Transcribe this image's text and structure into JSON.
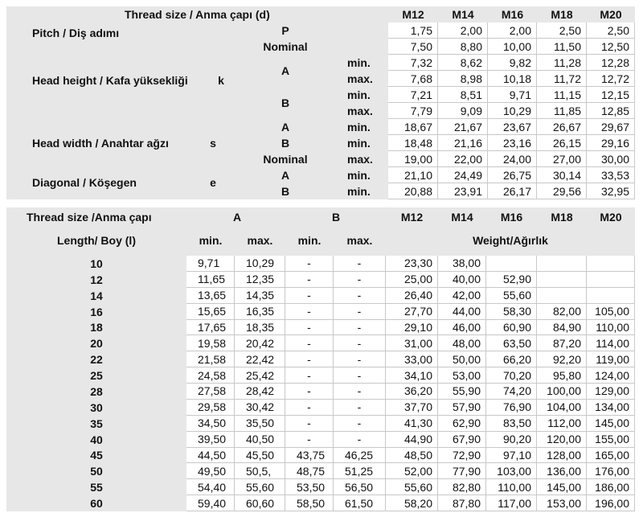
{
  "top": {
    "title": "Thread size / Anma çapı (d)",
    "sizes": [
      "M12",
      "M14",
      "M16",
      "M18",
      "M20"
    ],
    "groups": [
      {
        "name": "Pitch / Diş adımı"
      },
      {
        "name": "Head height / Kafa yüksekliği",
        "symbol": "k"
      },
      {
        "name": "Head width / Anahtar ağzı",
        "symbol": "s"
      },
      {
        "name": "Diagonal / Köşegen",
        "symbol": "e"
      }
    ],
    "spans": [
      "A",
      "B"
    ],
    "rows": [
      {
        "variant": "P",
        "values": [
          "1,75",
          "2,00",
          "2,00",
          "2,50",
          "2,50"
        ]
      },
      {
        "variant": "Nominal",
        "values": [
          "7,50",
          "8,80",
          "10,00",
          "11,50",
          "12,50"
        ]
      },
      {
        "limit": "min.",
        "values": [
          "7,32",
          "8,62",
          "9,82",
          "11,28",
          "12,28"
        ]
      },
      {
        "limit": "max.",
        "values": [
          "7,68",
          "8,98",
          "10,18",
          "11,72",
          "12,72"
        ]
      },
      {
        "limit": "min.",
        "values": [
          "7,21",
          "8,51",
          "9,71",
          "11,15",
          "12,15"
        ]
      },
      {
        "limit": "max.",
        "values": [
          "7,79",
          "9,09",
          "10,29",
          "11,85",
          "12,85"
        ]
      },
      {
        "variant": "A",
        "limit": "min.",
        "values": [
          "18,67",
          "21,67",
          "23,67",
          "26,67",
          "29,67"
        ]
      },
      {
        "variant": "B",
        "limit": "min.",
        "values": [
          "18,48",
          "21,16",
          "23,16",
          "26,15",
          "29,16"
        ]
      },
      {
        "variant": "Nominal",
        "limit": "max.",
        "values": [
          "19,00",
          "22,00",
          "24,00",
          "27,00",
          "30,00"
        ]
      },
      {
        "variant": "A",
        "limit": "min.",
        "values": [
          "21,10",
          "24,49",
          "26,75",
          "30,14",
          "33,53"
        ]
      },
      {
        "variant": "B",
        "limit": "min.",
        "values": [
          "20,88",
          "23,91",
          "26,17",
          "29,56",
          "32,95"
        ]
      }
    ]
  },
  "bottom": {
    "title": "Thread size /Anma çapı",
    "variants": [
      "A",
      "B"
    ],
    "sizes": [
      "M12",
      "M14",
      "M16",
      "M18",
      "M20"
    ],
    "length_label": "Length/ Boy (l)",
    "limits": [
      "min.",
      "max.",
      "min.",
      "max."
    ],
    "weight_label": "Weight/Ağırlık",
    "rows": [
      {
        "length": "10",
        "cells": [
          "9,71",
          "10,29",
          "-",
          "-",
          "23,30",
          "38,00",
          null,
          null,
          null
        ]
      },
      {
        "length": "12",
        "cells": [
          "11,65",
          "12,35",
          "-",
          "-",
          "25,00",
          "40,00",
          "52,90",
          null,
          null
        ]
      },
      {
        "length": "14",
        "cells": [
          "13,65",
          "14,35",
          "-",
          "-",
          "26,40",
          "42,00",
          "55,60",
          null,
          null
        ]
      },
      {
        "length": "16",
        "cells": [
          "15,65",
          "16,35",
          "-",
          "-",
          "27,70",
          "44,00",
          "58,30",
          "82,00",
          "105,00"
        ]
      },
      {
        "length": "18",
        "cells": [
          "17,65",
          "18,35",
          "-",
          "-",
          "29,10",
          "46,00",
          "60,90",
          "84,90",
          "110,00"
        ]
      },
      {
        "length": "20",
        "cells": [
          "19,58",
          "20,42",
          "-",
          "-",
          "31,00",
          "48,00",
          "63,50",
          "87,20",
          "114,00"
        ]
      },
      {
        "length": "22",
        "cells": [
          "21,58",
          "22,42",
          "-",
          "-",
          "33,00",
          "50,00",
          "66,20",
          "92,20",
          "119,00"
        ]
      },
      {
        "length": "25",
        "cells": [
          "24,58",
          "25,42",
          "-",
          "-",
          "34,10",
          "53,00",
          "70,20",
          "95,80",
          "124,00"
        ]
      },
      {
        "length": "28",
        "cells": [
          "27,58",
          "28,42",
          "-",
          "-",
          "36,20",
          "55,90",
          "74,20",
          "100,00",
          "129,00"
        ]
      },
      {
        "length": "30",
        "cells": [
          "29,58",
          "30,42",
          "-",
          "-",
          "37,70",
          "57,90",
          "76,90",
          "104,00",
          "134,00"
        ]
      },
      {
        "length": "35",
        "cells": [
          "34,50",
          "35,50",
          "-",
          "-",
          "41,30",
          "62,90",
          "83,50",
          "112,00",
          "145,00"
        ]
      },
      {
        "length": "40",
        "cells": [
          "39,50",
          "40,50",
          "-",
          "-",
          "44,90",
          "67,90",
          "90,20",
          "120,00",
          "155,00"
        ]
      },
      {
        "length": "45",
        "cells": [
          "44,50",
          "45,50",
          "43,75",
          "46,25",
          "48,50",
          "72,90",
          "97,10",
          "128,00",
          "165,00"
        ]
      },
      {
        "length": "50",
        "cells": [
          "49,50",
          "50,5,",
          "48,75",
          "51,25",
          "52,00",
          "77,90",
          "103,00",
          "136,00",
          "176,00"
        ]
      },
      {
        "length": "55",
        "cells": [
          "54,40",
          "55,60",
          "53,50",
          "56,50",
          "55,60",
          "82,80",
          "110,00",
          "145,00",
          "186,00"
        ]
      },
      {
        "length": "60",
        "cells": [
          "59,40",
          "60,60",
          "58,50",
          "61,50",
          "58,20",
          "87,80",
          "117,00",
          "153,00",
          "196,00"
        ]
      }
    ]
  }
}
